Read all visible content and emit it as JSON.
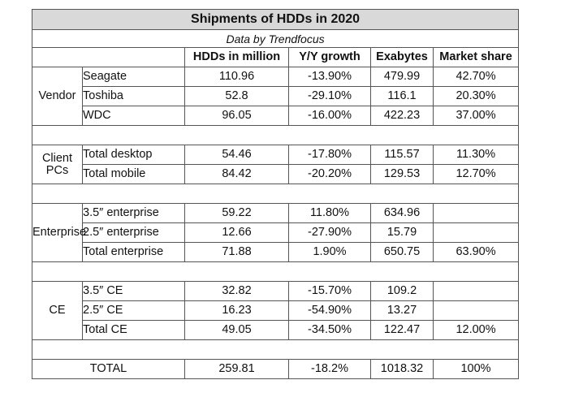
{
  "title": "Shipments of HDDs in 2020",
  "subtitle": "Data by Trendfocus",
  "columns": [
    "HDDs in million",
    "Y/Y growth",
    "Exabytes",
    "Market share"
  ],
  "groups": {
    "vendor": {
      "name": "Vendor",
      "rows": [
        {
          "label": "Seagate",
          "hdds": "110.96",
          "growth": "-13.90%",
          "exabytes": "479.99",
          "share": "42.70%"
        },
        {
          "label": "Toshiba",
          "hdds": "52.8",
          "growth": "-29.10%",
          "exabytes": "116.1",
          "share": "20.30%"
        },
        {
          "label": "WDC",
          "hdds": "96.05",
          "growth": "-16.00%",
          "exabytes": "422.23",
          "share": "37.00%"
        }
      ]
    },
    "client": {
      "name": "Client PCs",
      "rows": [
        {
          "label": "Total desktop",
          "hdds": "54.46",
          "growth": "-17.80%",
          "exabytes": "115.57",
          "share": "11.30%"
        },
        {
          "label": "Total mobile",
          "hdds": "84.42",
          "growth": "-20.20%",
          "exabytes": "129.53",
          "share": "12.70%"
        }
      ]
    },
    "enterprise": {
      "name": "Enterprise",
      "rows": [
        {
          "label": "3.5″ enterprise",
          "hdds": "59.22",
          "growth": "11.80%",
          "exabytes": "634.96",
          "share": ""
        },
        {
          "label": "2.5″ enterprise",
          "hdds": "12.66",
          "growth": "-27.90%",
          "exabytes": "15.79",
          "share": ""
        },
        {
          "label": "Total enterprise",
          "hdds": "71.88",
          "growth": "1.90%",
          "exabytes": "650.75",
          "share": "63.90%"
        }
      ]
    },
    "ce": {
      "name": "CE",
      "rows": [
        {
          "label": "3.5″ CE",
          "hdds": "32.82",
          "growth": "-15.70%",
          "exabytes": "109.2",
          "share": ""
        },
        {
          "label": "2.5″ CE",
          "hdds": "16.23",
          "growth": "-54.90%",
          "exabytes": "13.27",
          "share": ""
        },
        {
          "label": "Total CE",
          "hdds": "49.05",
          "growth": "-34.50%",
          "exabytes": "122.47",
          "share": "12.00%"
        }
      ]
    }
  },
  "total": {
    "label": "TOTAL",
    "hdds": "259.81",
    "growth": "-18.2%",
    "exabytes": "1018.32",
    "share": "100%"
  }
}
